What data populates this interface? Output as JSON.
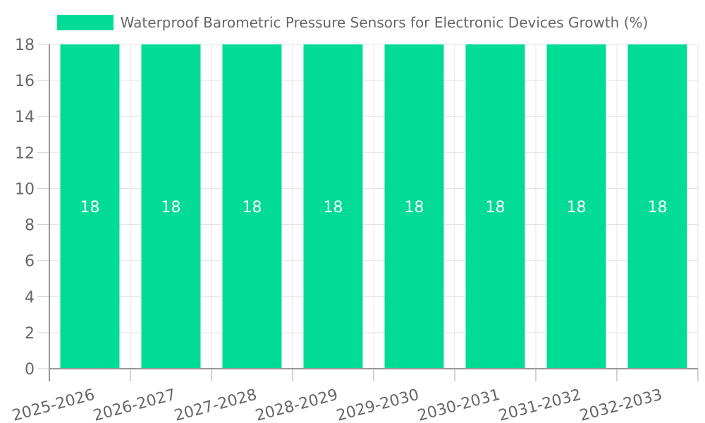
{
  "legend": {
    "label": "Waterproof Barometric Pressure Sensors for Electronic Devices Growth (%)"
  },
  "chart_data": {
    "type": "bar",
    "title": "Waterproof Barometric Pressure Sensors for Electronic Devices Growth (%)",
    "categories": [
      "2025-2026",
      "2026-2027",
      "2027-2028",
      "2028-2029",
      "2029-2030",
      "2030-2031",
      "2031-2032",
      "2032-2033"
    ],
    "values": [
      18,
      18,
      18,
      18,
      18,
      18,
      18,
      18
    ],
    "xlabel": "",
    "ylabel": "",
    "ylim": [
      0,
      18
    ],
    "ytick_step": 2,
    "grid": true,
    "legend_position": "top",
    "x_label_rotation_deg": -15,
    "colors": {
      "bar": "#00DC96",
      "label_text": "#666666",
      "bar_value_text": "#ffffff",
      "gridline": "#e4e4e4",
      "y_tick": "#d2d2d2",
      "x_tick": "#a6a6a6",
      "axis": "#999999",
      "background": "#ffffff"
    }
  }
}
